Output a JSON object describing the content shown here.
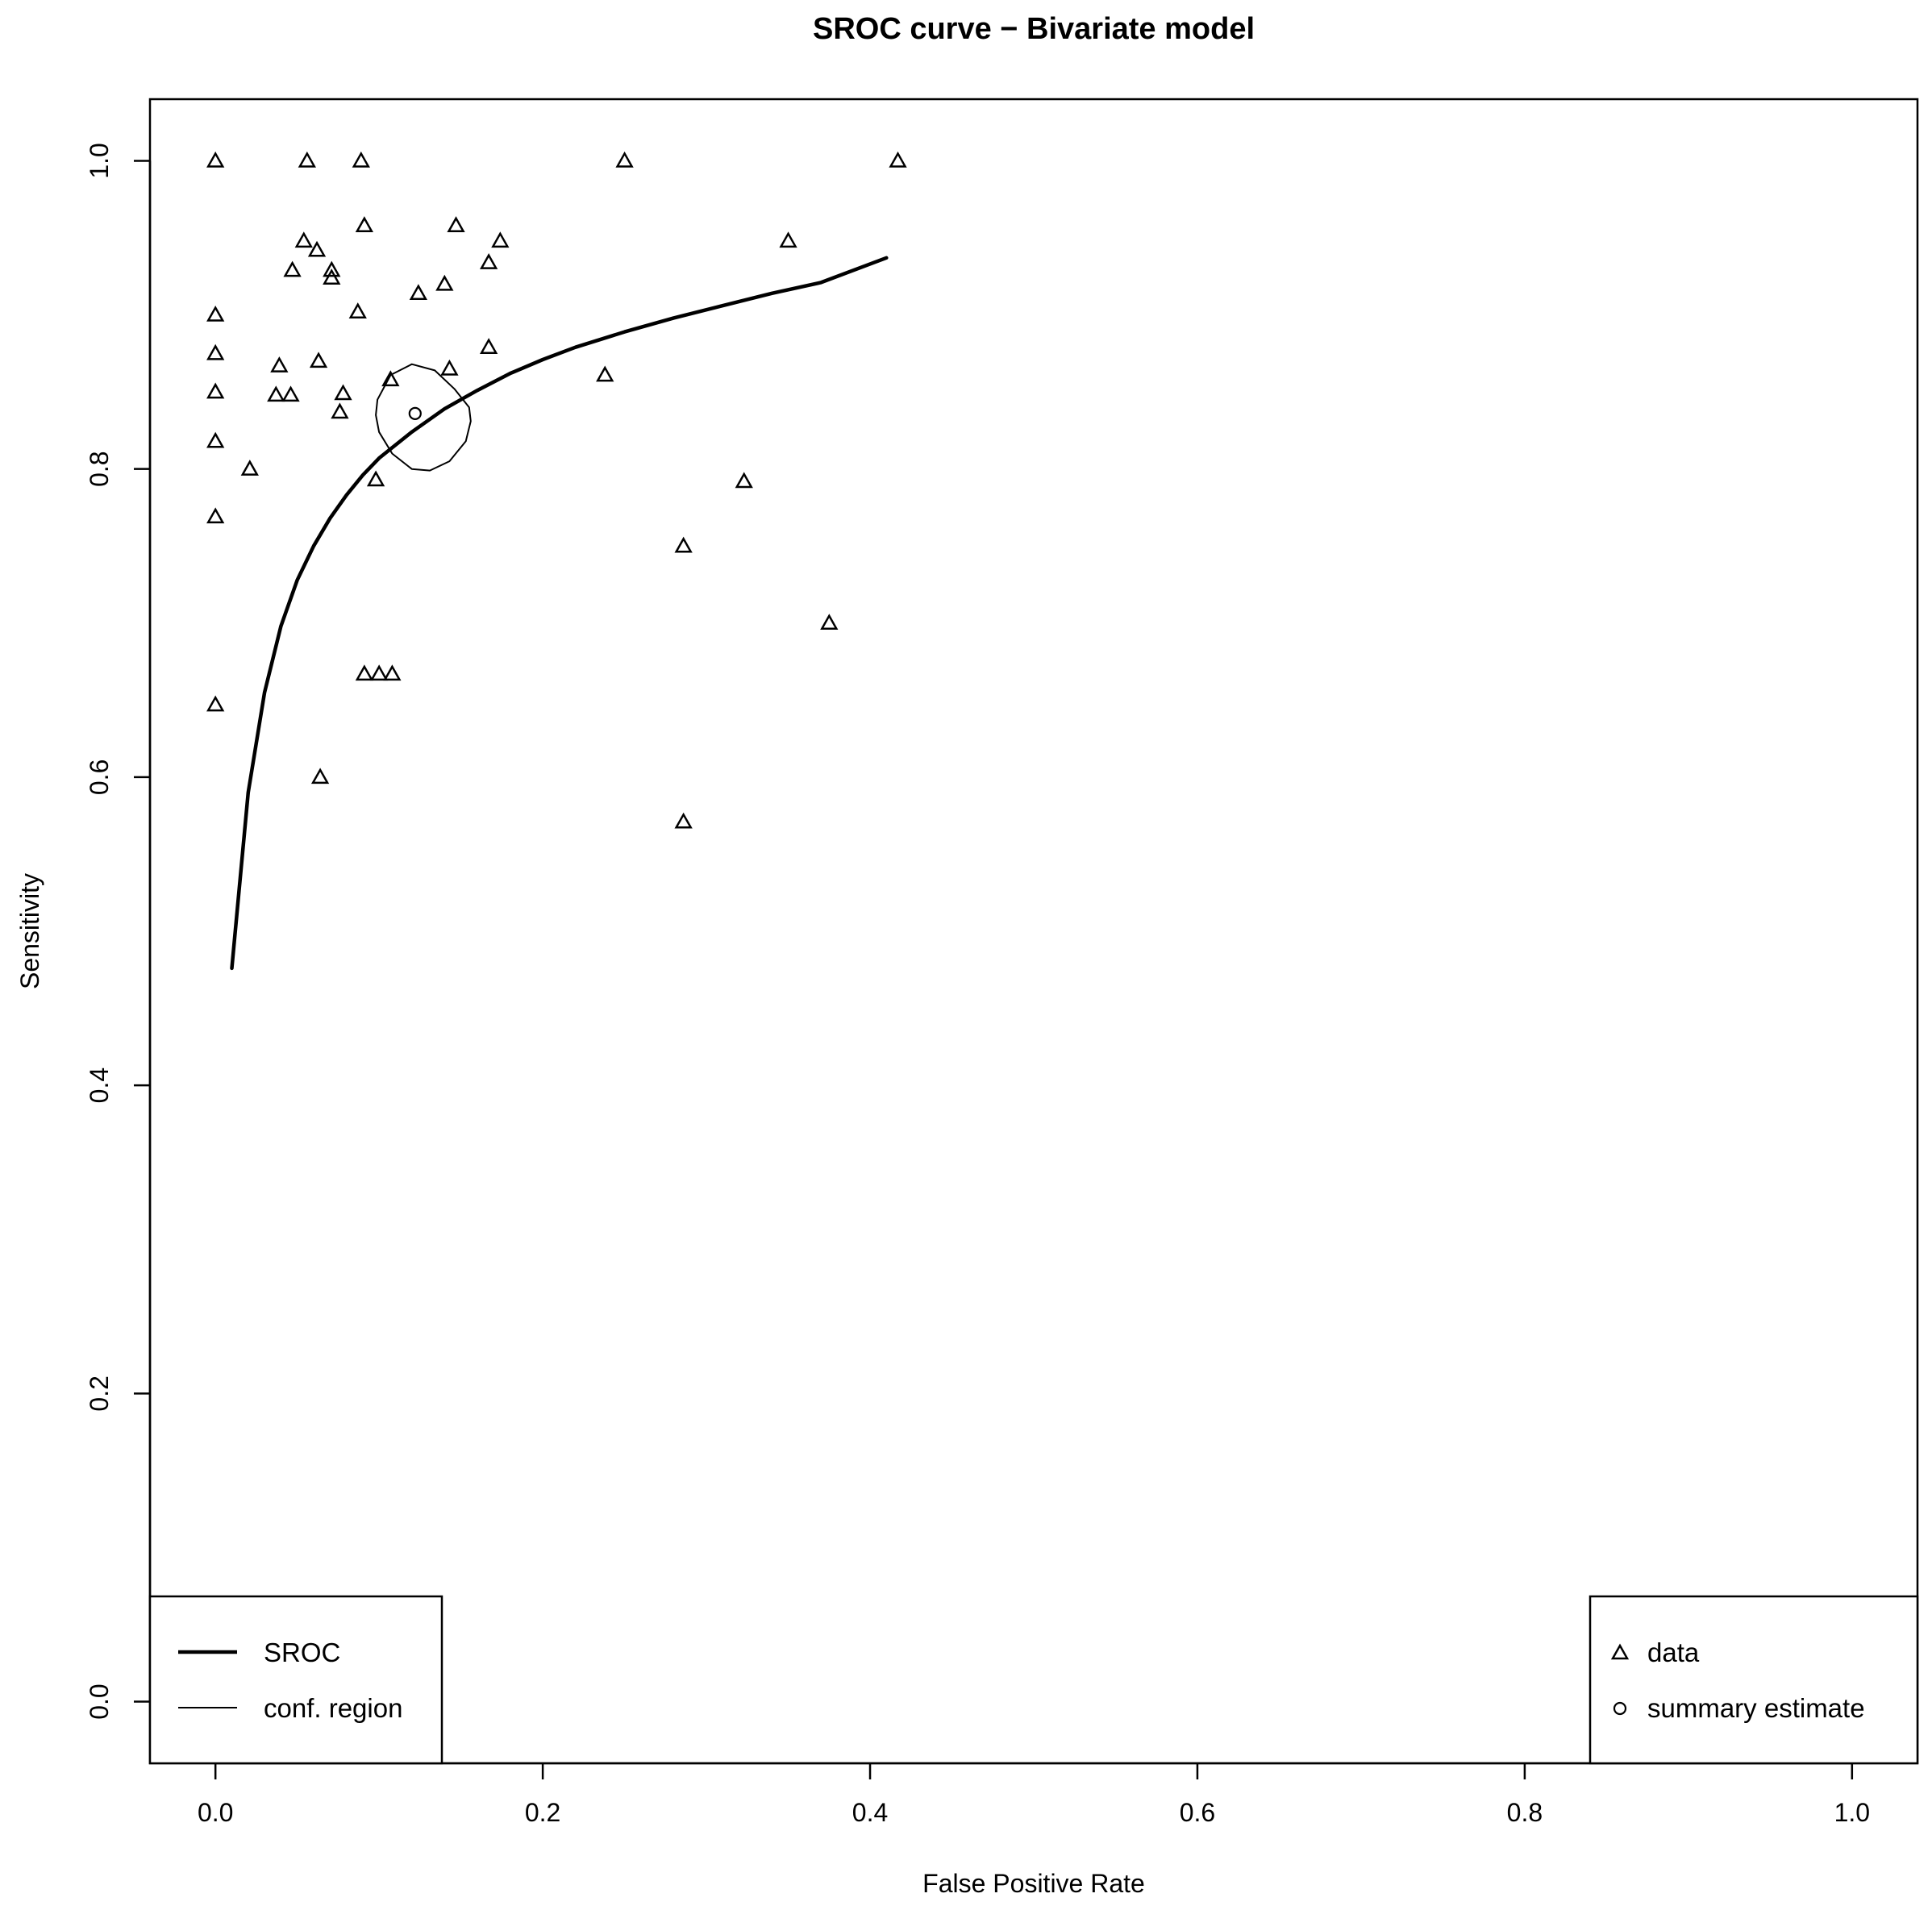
{
  "chart_data": {
    "type": "scatter",
    "title": "SROC curve − Bivariate model",
    "xlabel": "False Positive Rate",
    "ylabel": "Sensitivity",
    "xlim": [
      -0.04,
      1.04
    ],
    "ylim": [
      -0.04,
      1.04
    ],
    "x_ticks": [
      0.0,
      0.2,
      0.4,
      0.6,
      0.8,
      1.0
    ],
    "y_ticks": [
      0.0,
      0.2,
      0.4,
      0.6,
      0.8,
      1.0
    ],
    "x_tick_labels": [
      "0.0",
      "0.2",
      "0.4",
      "0.6",
      "0.8",
      "1.0"
    ],
    "y_tick_labels": [
      "0.0",
      "0.2",
      "0.4",
      "0.6",
      "0.8",
      "1.0"
    ],
    "grid": false,
    "series": [
      {
        "name": "data",
        "marker": "triangle",
        "points": [
          [
            0.0,
            1.0
          ],
          [
            0.056,
            1.0
          ],
          [
            0.089,
            1.0
          ],
          [
            0.25,
            1.0
          ],
          [
            0.417,
            1.0
          ],
          [
            0.054,
            0.948
          ],
          [
            0.062,
            0.942
          ],
          [
            0.091,
            0.958
          ],
          [
            0.147,
            0.958
          ],
          [
            0.174,
            0.948
          ],
          [
            0.35,
            0.948
          ],
          [
            0.047,
            0.929
          ],
          [
            0.071,
            0.929
          ],
          [
            0.071,
            0.924
          ],
          [
            0.167,
            0.934
          ],
          [
            0.124,
            0.914
          ],
          [
            0.14,
            0.92
          ],
          [
            0.0,
            0.9
          ],
          [
            0.087,
            0.902
          ],
          [
            0.0,
            0.875
          ],
          [
            0.167,
            0.879
          ],
          [
            0.039,
            0.867
          ],
          [
            0.063,
            0.87
          ],
          [
            0.143,
            0.865
          ],
          [
            0.238,
            0.861
          ],
          [
            0.107,
            0.858
          ],
          [
            0.0,
            0.85
          ],
          [
            0.037,
            0.848
          ],
          [
            0.046,
            0.848
          ],
          [
            0.078,
            0.849
          ],
          [
            0.076,
            0.837
          ],
          [
            0.0,
            0.818
          ],
          [
            0.021,
            0.8
          ],
          [
            0.098,
            0.793
          ],
          [
            0.323,
            0.792
          ],
          [
            0.0,
            0.769
          ],
          [
            0.286,
            0.75
          ],
          [
            0.375,
            0.7
          ],
          [
            0.091,
            0.667
          ],
          [
            0.1,
            0.667
          ],
          [
            0.108,
            0.667
          ],
          [
            0.0,
            0.647
          ],
          [
            0.064,
            0.6
          ],
          [
            0.286,
            0.571
          ]
        ]
      },
      {
        "name": "summary estimate",
        "marker": "circle",
        "points": [
          [
            0.122,
            0.836
          ]
        ]
      },
      {
        "name": "SROC",
        "line": "thick",
        "points": [
          [
            0.01,
            0.476
          ],
          [
            0.02,
            0.59
          ],
          [
            0.03,
            0.655
          ],
          [
            0.04,
            0.698
          ],
          [
            0.05,
            0.728
          ],
          [
            0.06,
            0.75
          ],
          [
            0.07,
            0.768
          ],
          [
            0.08,
            0.783
          ],
          [
            0.09,
            0.796
          ],
          [
            0.1,
            0.807
          ],
          [
            0.12,
            0.824
          ],
          [
            0.14,
            0.839
          ],
          [
            0.16,
            0.851
          ],
          [
            0.18,
            0.862
          ],
          [
            0.2,
            0.871
          ],
          [
            0.22,
            0.879
          ],
          [
            0.25,
            0.889
          ],
          [
            0.28,
            0.898
          ],
          [
            0.31,
            0.906
          ],
          [
            0.34,
            0.914
          ],
          [
            0.37,
            0.921
          ],
          [
            0.41,
            0.937
          ]
        ]
      },
      {
        "name": "conf. region",
        "line": "thin",
        "points": [
          [
            0.099,
            0.845
          ],
          [
            0.107,
            0.861
          ],
          [
            0.12,
            0.868
          ],
          [
            0.134,
            0.864
          ],
          [
            0.146,
            0.852
          ],
          [
            0.155,
            0.84
          ],
          [
            0.156,
            0.831
          ],
          [
            0.153,
            0.818
          ],
          [
            0.143,
            0.805
          ],
          [
            0.131,
            0.799
          ],
          [
            0.12,
            0.8
          ],
          [
            0.108,
            0.81
          ],
          [
            0.1,
            0.824
          ],
          [
            0.098,
            0.835
          ],
          [
            0.099,
            0.845
          ]
        ]
      }
    ],
    "legends": [
      {
        "position": "bottom-left",
        "entries": [
          {
            "label": "SROC",
            "symbol": "line-thick"
          },
          {
            "label": "conf. region",
            "symbol": "line-thin"
          }
        ]
      },
      {
        "position": "bottom-right",
        "entries": [
          {
            "label": "data",
            "symbol": "triangle"
          },
          {
            "label": "summary estimate",
            "symbol": "circle"
          }
        ]
      }
    ]
  }
}
